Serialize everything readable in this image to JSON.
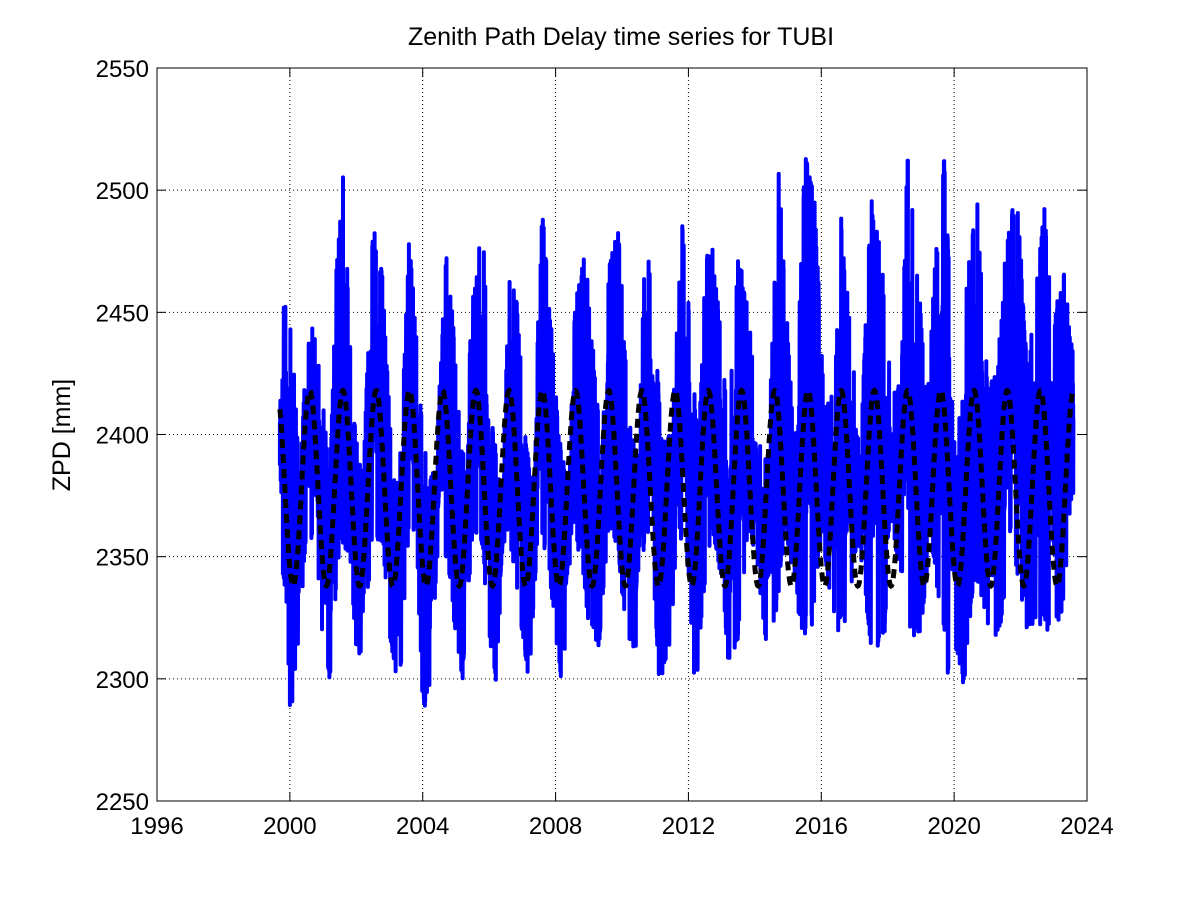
{
  "chart_data": {
    "type": "line",
    "title": "Zenith Path Delay time series for TUBI",
    "xlabel": "",
    "ylabel": "ZPD [mm]",
    "xlim": [
      1996,
      2024
    ],
    "ylim": [
      2250,
      2550
    ],
    "xticks": [
      1996,
      2000,
      2004,
      2008,
      2012,
      2016,
      2020,
      2024
    ],
    "yticks": [
      2250,
      2300,
      2350,
      2400,
      2450,
      2500,
      2550
    ],
    "grid": true,
    "legend": "none",
    "series": [
      {
        "style": "solid",
        "color": "#0000ff",
        "x_range": [
          1999.7,
          2023.6
        ],
        "upper_envelope": [
          [
            1999.7,
            2447
          ],
          [
            1999.9,
            2458
          ],
          [
            2000.1,
            2434
          ],
          [
            2000.3,
            2380
          ],
          [
            2000.5,
            2438
          ],
          [
            2000.7,
            2446
          ],
          [
            2000.9,
            2430
          ],
          [
            2001.2,
            2380
          ],
          [
            2001.4,
            2468
          ],
          [
            2001.6,
            2510
          ],
          [
            2001.9,
            2410
          ],
          [
            2002.2,
            2382
          ],
          [
            2002.5,
            2486
          ],
          [
            2002.8,
            2465
          ],
          [
            2003.1,
            2382
          ],
          [
            2003.3,
            2384
          ],
          [
            2003.6,
            2485
          ],
          [
            2003.9,
            2420
          ],
          [
            2004.2,
            2380
          ],
          [
            2004.4,
            2390
          ],
          [
            2004.7,
            2475
          ],
          [
            2004.9,
            2450
          ],
          [
            2005.2,
            2390
          ],
          [
            2005.5,
            2455
          ],
          [
            2005.8,
            2488
          ],
          [
            2006.1,
            2405
          ],
          [
            2006.4,
            2372
          ],
          [
            2006.6,
            2467
          ],
          [
            2006.8,
            2463
          ],
          [
            2007.1,
            2398
          ],
          [
            2007.3,
            2382
          ],
          [
            2007.6,
            2493
          ],
          [
            2007.9,
            2440
          ],
          [
            2008.1,
            2400
          ],
          [
            2008.4,
            2378
          ],
          [
            2008.6,
            2460
          ],
          [
            2008.9,
            2476
          ],
          [
            2009.1,
            2440
          ],
          [
            2009.4,
            2390
          ],
          [
            2009.6,
            2470
          ],
          [
            2009.9,
            2485
          ],
          [
            2010.2,
            2406
          ],
          [
            2010.5,
            2390
          ],
          [
            2010.7,
            2484
          ],
          [
            2011.0,
            2446
          ],
          [
            2011.2,
            2398
          ],
          [
            2011.5,
            2400
          ],
          [
            2011.8,
            2490
          ],
          [
            2012.1,
            2440
          ],
          [
            2012.3,
            2390
          ],
          [
            2012.5,
            2470
          ],
          [
            2012.7,
            2482
          ],
          [
            2013.0,
            2440
          ],
          [
            2013.2,
            2404
          ],
          [
            2013.5,
            2473
          ],
          [
            2013.8,
            2456
          ],
          [
            2014.1,
            2400
          ],
          [
            2014.4,
            2390
          ],
          [
            2014.7,
            2513
          ],
          [
            2015.0,
            2440
          ],
          [
            2015.2,
            2395
          ],
          [
            2015.5,
            2515
          ],
          [
            2015.8,
            2498
          ],
          [
            2016.1,
            2410
          ],
          [
            2016.4,
            2420
          ],
          [
            2016.6,
            2490
          ],
          [
            2016.9,
            2440
          ],
          [
            2017.2,
            2400
          ],
          [
            2017.5,
            2501
          ],
          [
            2017.8,
            2478
          ],
          [
            2018.1,
            2420
          ],
          [
            2018.4,
            2420
          ],
          [
            2018.6,
            2518
          ],
          [
            2018.9,
            2468
          ],
          [
            2019.2,
            2415
          ],
          [
            2019.4,
            2465
          ],
          [
            2019.7,
            2515
          ],
          [
            2020.0,
            2434
          ],
          [
            2020.2,
            2400
          ],
          [
            2020.4,
            2470
          ],
          [
            2020.7,
            2497
          ],
          [
            2021.0,
            2424
          ],
          [
            2021.3,
            2426
          ],
          [
            2021.6,
            2485
          ],
          [
            2021.9,
            2500
          ],
          [
            2022.2,
            2426
          ],
          [
            2022.4,
            2450
          ],
          [
            2022.7,
            2495
          ],
          [
            2023.0,
            2446
          ],
          [
            2023.3,
            2472
          ],
          [
            2023.5,
            2438
          ],
          [
            2023.6,
            2437
          ]
        ],
        "lower_envelope": [
          [
            1999.7,
            2348
          ],
          [
            1999.9,
            2330
          ],
          [
            2000.0,
            2282
          ],
          [
            2000.2,
            2303
          ],
          [
            2000.5,
            2360
          ],
          [
            2000.8,
            2352
          ],
          [
            2001.0,
            2310
          ],
          [
            2001.2,
            2300
          ],
          [
            2001.5,
            2352
          ],
          [
            2001.8,
            2350
          ],
          [
            2002.0,
            2312
          ],
          [
            2002.2,
            2308
          ],
          [
            2002.5,
            2360
          ],
          [
            2002.8,
            2354
          ],
          [
            2003.0,
            2315
          ],
          [
            2003.3,
            2295
          ],
          [
            2003.6,
            2362
          ],
          [
            2003.8,
            2360
          ],
          [
            2004.0,
            2285
          ],
          [
            2004.2,
            2297
          ],
          [
            2004.5,
            2360
          ],
          [
            2004.8,
            2340
          ],
          [
            2005.0,
            2315
          ],
          [
            2005.2,
            2300
          ],
          [
            2005.5,
            2358
          ],
          [
            2005.8,
            2350
          ],
          [
            2006.0,
            2315
          ],
          [
            2006.2,
            2299
          ],
          [
            2006.5,
            2365
          ],
          [
            2006.8,
            2340
          ],
          [
            2007.0,
            2315
          ],
          [
            2007.2,
            2299
          ],
          [
            2007.5,
            2366
          ],
          [
            2007.8,
            2342
          ],
          [
            2008.0,
            2318
          ],
          [
            2008.2,
            2293
          ],
          [
            2008.5,
            2365
          ],
          [
            2008.8,
            2345
          ],
          [
            2009.0,
            2320
          ],
          [
            2009.3,
            2310
          ],
          [
            2009.6,
            2362
          ],
          [
            2009.9,
            2348
          ],
          [
            2010.1,
            2320
          ],
          [
            2010.4,
            2310
          ],
          [
            2010.7,
            2360
          ],
          [
            2010.9,
            2347
          ],
          [
            2011.1,
            2300
          ],
          [
            2011.4,
            2305
          ],
          [
            2011.7,
            2362
          ],
          [
            2012.0,
            2340
          ],
          [
            2012.2,
            2290
          ],
          [
            2012.4,
            2325
          ],
          [
            2012.7,
            2362
          ],
          [
            2013.0,
            2340
          ],
          [
            2013.2,
            2305
          ],
          [
            2013.5,
            2315
          ],
          [
            2013.8,
            2360
          ],
          [
            2014.1,
            2345
          ],
          [
            2014.3,
            2315
          ],
          [
            2014.6,
            2320
          ],
          [
            2014.9,
            2360
          ],
          [
            2015.2,
            2340
          ],
          [
            2015.4,
            2315
          ],
          [
            2015.7,
            2320
          ],
          [
            2016.0,
            2358
          ],
          [
            2016.2,
            2340
          ],
          [
            2016.5,
            2317
          ],
          [
            2016.8,
            2320
          ],
          [
            2017.1,
            2360
          ],
          [
            2017.3,
            2335
          ],
          [
            2017.6,
            2302
          ],
          [
            2017.9,
            2318
          ],
          [
            2018.2,
            2355
          ],
          [
            2018.5,
            2335
          ],
          [
            2018.7,
            2310
          ],
          [
            2019.0,
            2318
          ],
          [
            2019.3,
            2358
          ],
          [
            2019.5,
            2335
          ],
          [
            2019.8,
            2299
          ],
          [
            2020.0,
            2310
          ],
          [
            2020.3,
            2297
          ],
          [
            2020.6,
            2340
          ],
          [
            2020.9,
            2330
          ],
          [
            2021.1,
            2310
          ],
          [
            2021.4,
            2320
          ],
          [
            2021.7,
            2360
          ],
          [
            2022.0,
            2335
          ],
          [
            2022.2,
            2318
          ],
          [
            2022.5,
            2322
          ],
          [
            2022.8,
            2320
          ],
          [
            2023.0,
            2318
          ],
          [
            2023.3,
            2330
          ],
          [
            2023.5,
            2373
          ],
          [
            2023.6,
            2373
          ]
        ]
      },
      {
        "style": "dashed",
        "color": "#000000",
        "model": "annual sinusoid",
        "x_range": [
          1999.7,
          2023.6
        ],
        "mean": 2378,
        "amplitude": 40,
        "peak_month_fraction": 0.6,
        "upper_peak": 2418,
        "lower_trough": 2338
      }
    ]
  }
}
